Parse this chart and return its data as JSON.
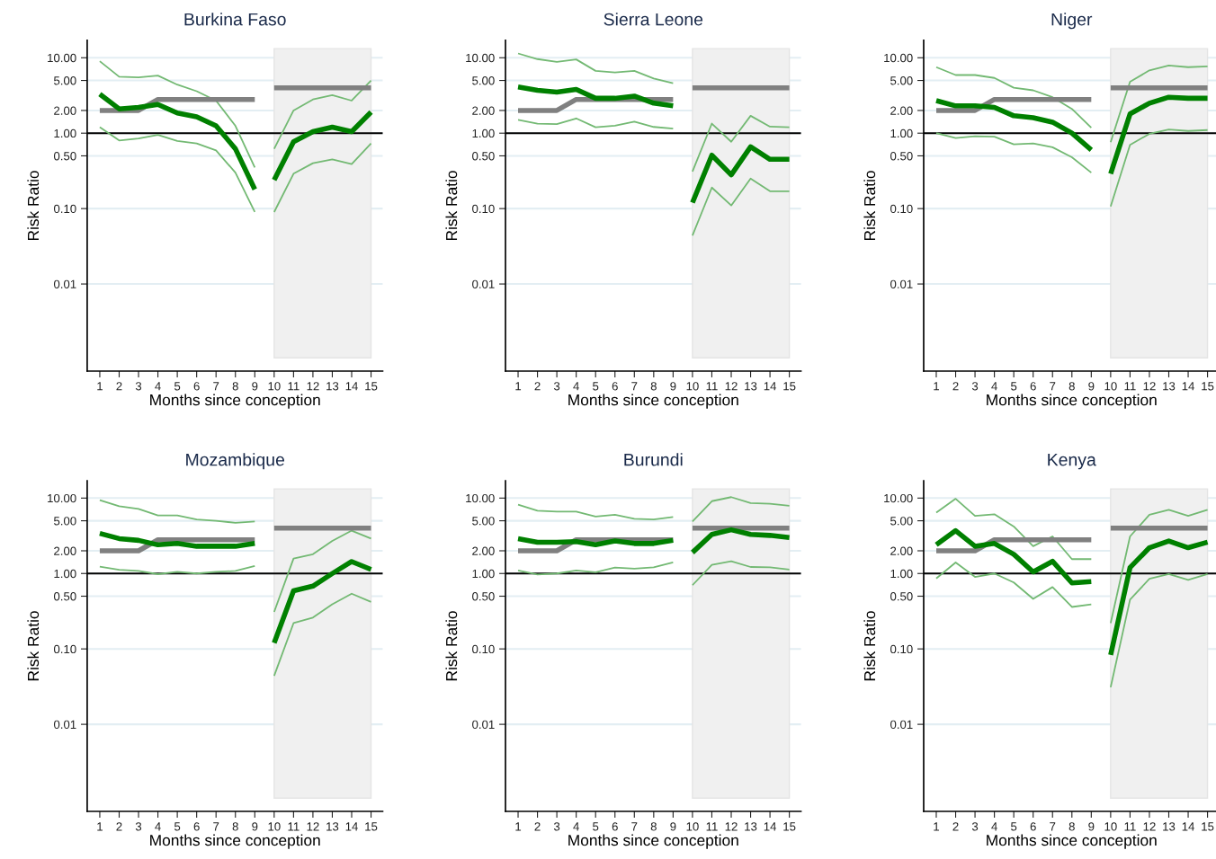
{
  "chart_data": [
    {
      "type": "line",
      "title": "Burkina Faso",
      "xlabel": "Months since conception",
      "ylabel": "Risk Ratio",
      "log": "y",
      "grid": "y",
      "xlim": [
        0.35,
        15.6
      ],
      "xticks": [
        1,
        2,
        3,
        4,
        5,
        6,
        7,
        8,
        9,
        10,
        11,
        12,
        13,
        14,
        15
      ],
      "ylim": [
        0.0007,
        17
      ],
      "yticks": [
        {
          "value": 0.01,
          "label": "0.01"
        },
        {
          "value": 0.1,
          "label": "0.10"
        },
        {
          "value": 0.5,
          "label": "0.50"
        },
        {
          "value": 1,
          "label": "1.00"
        },
        {
          "value": 2,
          "label": "2.00"
        },
        {
          "value": 5,
          "label": "5.00"
        },
        {
          "value": 10,
          "label": "10.00"
        }
      ],
      "ref_lines": [
        {
          "axis": "y",
          "value": 1,
          "color": "#000000"
        }
      ],
      "bands": [
        {
          "axis": "x",
          "from": 10,
          "to": 15,
          "color": "#f0f0f0"
        }
      ],
      "series": [
        {
          "color": "#808080",
          "x": [
            1,
            2,
            3,
            4,
            5,
            6,
            7,
            8,
            9
          ],
          "values": [
            2,
            2,
            2,
            2.8,
            2.8,
            2.8,
            2.8,
            2.8,
            2.8
          ]
        },
        {
          "color": "#808080",
          "x": [
            10,
            11,
            12,
            13,
            14,
            15
          ],
          "values": [
            4,
            4,
            4,
            4,
            4,
            4
          ]
        },
        {
          "color": "#73b973",
          "x": [
            1,
            2,
            3,
            4,
            5,
            6,
            7,
            8,
            9
          ],
          "values": [
            1.2,
            0.8,
            0.85,
            0.95,
            0.79,
            0.73,
            0.59,
            0.3,
            0.09
          ]
        },
        {
          "color": "#73b973",
          "x": [
            1,
            2,
            3,
            4,
            5,
            6,
            7,
            8,
            9
          ],
          "values": [
            9.0,
            5.6,
            5.5,
            5.8,
            4.4,
            3.6,
            2.7,
            1.25,
            0.35
          ]
        },
        {
          "color": "#73b973",
          "x": [
            10,
            11,
            12,
            13,
            14,
            15
          ],
          "values": [
            0.09,
            0.29,
            0.4,
            0.45,
            0.39,
            0.73
          ]
        },
        {
          "color": "#73b973",
          "x": [
            10,
            11,
            12,
            13,
            14,
            15
          ],
          "values": [
            0.62,
            2.0,
            2.8,
            3.2,
            2.7,
            5.0
          ]
        },
        {
          "color": "#008000",
          "x": [
            1,
            2,
            3,
            4,
            5,
            6,
            7,
            8,
            9
          ],
          "values": [
            3.3,
            2.1,
            2.2,
            2.4,
            1.85,
            1.65,
            1.25,
            0.62,
            0.18
          ]
        },
        {
          "color": "#008000",
          "x": [
            10,
            11,
            12,
            13,
            14,
            15
          ],
          "values": [
            0.24,
            0.77,
            1.05,
            1.2,
            1.05,
            1.9
          ]
        }
      ]
    },
    {
      "type": "line",
      "title": "Sierra Leone",
      "xlabel": "Months since conception",
      "ylabel": "Risk Ratio",
      "log": "y",
      "grid": "y",
      "xlim": [
        0.35,
        15.6
      ],
      "xticks": [
        1,
        2,
        3,
        4,
        5,
        6,
        7,
        8,
        9,
        10,
        11,
        12,
        13,
        14,
        15
      ],
      "ylim": [
        0.0007,
        17
      ],
      "yticks": [
        {
          "value": 0.01,
          "label": "0.01"
        },
        {
          "value": 0.1,
          "label": "0.10"
        },
        {
          "value": 0.5,
          "label": "0.50"
        },
        {
          "value": 1,
          "label": "1.00"
        },
        {
          "value": 2,
          "label": "2.00"
        },
        {
          "value": 5,
          "label": "5.00"
        },
        {
          "value": 10,
          "label": "10.00"
        }
      ],
      "ref_lines": [
        {
          "axis": "y",
          "value": 1,
          "color": "#000000"
        }
      ],
      "bands": [
        {
          "axis": "x",
          "from": 10,
          "to": 15,
          "color": "#f0f0f0"
        }
      ],
      "series": [
        {
          "color": "#808080",
          "x": [
            1,
            2,
            3,
            4,
            5,
            6,
            7,
            8,
            9
          ],
          "values": [
            2,
            2,
            2,
            2.8,
            2.8,
            2.8,
            2.8,
            2.8,
            2.8
          ]
        },
        {
          "color": "#808080",
          "x": [
            10,
            11,
            12,
            13,
            14,
            15
          ],
          "values": [
            4,
            4,
            4,
            4,
            4,
            4
          ]
        },
        {
          "color": "#73b973",
          "x": [
            1,
            2,
            3,
            4,
            5,
            6,
            7,
            8,
            9
          ],
          "values": [
            1.5,
            1.34,
            1.32,
            1.57,
            1.2,
            1.26,
            1.42,
            1.21,
            1.15
          ]
        },
        {
          "color": "#73b973",
          "x": [
            1,
            2,
            3,
            4,
            5,
            6,
            7,
            8,
            9
          ],
          "values": [
            11.4,
            9.6,
            8.8,
            9.5,
            6.7,
            6.4,
            6.7,
            5.3,
            4.6
          ]
        },
        {
          "color": "#73b973",
          "x": [
            10,
            11,
            12,
            13,
            14,
            15
          ],
          "values": [
            0.044,
            0.19,
            0.11,
            0.25,
            0.17,
            0.17
          ]
        },
        {
          "color": "#73b973",
          "x": [
            10,
            11,
            12,
            13,
            14,
            15
          ],
          "values": [
            0.31,
            1.34,
            0.77,
            1.7,
            1.22,
            1.2
          ]
        },
        {
          "color": "#008000",
          "x": [
            1,
            2,
            3,
            4,
            5,
            6,
            7,
            8,
            9
          ],
          "values": [
            4.1,
            3.7,
            3.5,
            3.8,
            2.9,
            2.9,
            3.1,
            2.5,
            2.3
          ]
        },
        {
          "color": "#008000",
          "x": [
            10,
            11,
            12,
            13,
            14,
            15
          ],
          "values": [
            0.12,
            0.51,
            0.28,
            0.66,
            0.45,
            0.45
          ]
        }
      ]
    },
    {
      "type": "line",
      "title": "Niger",
      "xlabel": "Months since conception",
      "ylabel": "Risk Ratio",
      "log": "y",
      "grid": "y",
      "xlim": [
        0.35,
        15.6
      ],
      "xticks": [
        1,
        2,
        3,
        4,
        5,
        6,
        7,
        8,
        9,
        10,
        11,
        12,
        13,
        14,
        15
      ],
      "ylim": [
        0.0007,
        17
      ],
      "yticks": [
        {
          "value": 0.01,
          "label": "0.01"
        },
        {
          "value": 0.1,
          "label": "0.10"
        },
        {
          "value": 0.5,
          "label": "0.50"
        },
        {
          "value": 1,
          "label": "1.00"
        },
        {
          "value": 2,
          "label": "2.00"
        },
        {
          "value": 5,
          "label": "5.00"
        },
        {
          "value": 10,
          "label": "10.00"
        }
      ],
      "ref_lines": [
        {
          "axis": "y",
          "value": 1,
          "color": "#000000"
        }
      ],
      "bands": [
        {
          "axis": "x",
          "from": 10,
          "to": 15,
          "color": "#f0f0f0"
        }
      ],
      "series": [
        {
          "color": "#808080",
          "x": [
            1,
            2,
            3,
            4,
            5,
            6,
            7,
            8,
            9
          ],
          "values": [
            2,
            2,
            2,
            2.8,
            2.8,
            2.8,
            2.8,
            2.8,
            2.8
          ]
        },
        {
          "color": "#808080",
          "x": [
            10,
            11,
            12,
            13,
            14,
            15
          ],
          "values": [
            4,
            4,
            4,
            4,
            4,
            4
          ]
        },
        {
          "color": "#73b973",
          "x": [
            1,
            2,
            3,
            4,
            5,
            6,
            7,
            8,
            9
          ],
          "values": [
            1.0,
            0.86,
            0.91,
            0.9,
            0.71,
            0.73,
            0.65,
            0.48,
            0.3
          ]
        },
        {
          "color": "#73b973",
          "x": [
            1,
            2,
            3,
            4,
            5,
            6,
            7,
            8,
            9
          ],
          "values": [
            7.5,
            5.9,
            5.9,
            5.4,
            4.0,
            3.7,
            3.0,
            2.1,
            1.18
          ]
        },
        {
          "color": "#73b973",
          "x": [
            10,
            11,
            12,
            13,
            14,
            15
          ],
          "values": [
            0.107,
            0.7,
            0.98,
            1.12,
            1.07,
            1.1
          ]
        },
        {
          "color": "#73b973",
          "x": [
            10,
            11,
            12,
            13,
            14,
            15
          ],
          "values": [
            0.76,
            4.8,
            6.8,
            7.9,
            7.5,
            7.7
          ]
        },
        {
          "color": "#008000",
          "x": [
            1,
            2,
            3,
            4,
            5,
            6,
            7,
            8,
            9
          ],
          "values": [
            2.7,
            2.3,
            2.3,
            2.2,
            1.7,
            1.6,
            1.4,
            1.0,
            0.6
          ]
        },
        {
          "color": "#008000",
          "x": [
            10,
            11,
            12,
            13,
            14,
            15
          ],
          "values": [
            0.29,
            1.8,
            2.5,
            3.0,
            2.9,
            2.9
          ]
        }
      ]
    },
    {
      "type": "line",
      "title": "Mozambique",
      "xlabel": "Months since conception",
      "ylabel": "Risk Ratio",
      "log": "y",
      "grid": "y",
      "xlim": [
        0.35,
        15.6
      ],
      "xticks": [
        1,
        2,
        3,
        4,
        5,
        6,
        7,
        8,
        9,
        10,
        11,
        12,
        13,
        14,
        15
      ],
      "ylim": [
        0.0007,
        17
      ],
      "yticks": [
        {
          "value": 0.01,
          "label": "0.01"
        },
        {
          "value": 0.1,
          "label": "0.10"
        },
        {
          "value": 0.5,
          "label": "0.50"
        },
        {
          "value": 1,
          "label": "1.00"
        },
        {
          "value": 2,
          "label": "2.00"
        },
        {
          "value": 5,
          "label": "5.00"
        },
        {
          "value": 10,
          "label": "10.00"
        }
      ],
      "ref_lines": [
        {
          "axis": "y",
          "value": 1,
          "color": "#000000"
        }
      ],
      "bands": [
        {
          "axis": "x",
          "from": 10,
          "to": 15,
          "color": "#f0f0f0"
        }
      ],
      "series": [
        {
          "color": "#808080",
          "x": [
            1,
            2,
            3,
            4,
            5,
            6,
            7,
            8,
            9
          ],
          "values": [
            2,
            2,
            2,
            2.8,
            2.8,
            2.8,
            2.8,
            2.8,
            2.8
          ]
        },
        {
          "color": "#808080",
          "x": [
            10,
            11,
            12,
            13,
            14,
            15
          ],
          "values": [
            4,
            4,
            4,
            4,
            4,
            4
          ]
        },
        {
          "color": "#73b973",
          "x": [
            1,
            2,
            3,
            4,
            5,
            6,
            7,
            8,
            9
          ],
          "values": [
            1.23,
            1.12,
            1.08,
            0.98,
            1.05,
            1.0,
            1.05,
            1.08,
            1.26
          ]
        },
        {
          "color": "#73b973",
          "x": [
            1,
            2,
            3,
            4,
            5,
            6,
            7,
            8,
            9
          ],
          "values": [
            9.4,
            7.8,
            7.2,
            5.9,
            5.9,
            5.2,
            5.0,
            4.7,
            4.9
          ]
        },
        {
          "color": "#73b973",
          "x": [
            10,
            11,
            12,
            13,
            14,
            15
          ],
          "values": [
            0.044,
            0.22,
            0.26,
            0.39,
            0.54,
            0.42
          ]
        },
        {
          "color": "#73b973",
          "x": [
            10,
            11,
            12,
            13,
            14,
            15
          ],
          "values": [
            0.31,
            1.58,
            1.8,
            2.7,
            3.7,
            2.9
          ]
        },
        {
          "color": "#008000",
          "x": [
            1,
            2,
            3,
            4,
            5,
            6,
            7,
            8,
            9
          ],
          "values": [
            3.4,
            2.9,
            2.75,
            2.4,
            2.5,
            2.3,
            2.3,
            2.3,
            2.5
          ]
        },
        {
          "color": "#008000",
          "x": [
            10,
            11,
            12,
            13,
            14,
            15
          ],
          "values": [
            0.12,
            0.59,
            0.68,
            1.0,
            1.44,
            1.13
          ]
        }
      ]
    },
    {
      "type": "line",
      "title": "Burundi",
      "xlabel": "Months since conception",
      "ylabel": "Risk Ratio",
      "log": "y",
      "grid": "y",
      "xlim": [
        0.35,
        15.6
      ],
      "xticks": [
        1,
        2,
        3,
        4,
        5,
        6,
        7,
        8,
        9,
        10,
        11,
        12,
        13,
        14,
        15
      ],
      "ylim": [
        0.0007,
        17
      ],
      "yticks": [
        {
          "value": 0.01,
          "label": "0.01"
        },
        {
          "value": 0.1,
          "label": "0.10"
        },
        {
          "value": 0.5,
          "label": "0.50"
        },
        {
          "value": 1,
          "label": "1.00"
        },
        {
          "value": 2,
          "label": "2.00"
        },
        {
          "value": 5,
          "label": "5.00"
        },
        {
          "value": 10,
          "label": "10.00"
        }
      ],
      "ref_lines": [
        {
          "axis": "y",
          "value": 1,
          "color": "#000000"
        }
      ],
      "bands": [
        {
          "axis": "x",
          "from": 10,
          "to": 15,
          "color": "#f0f0f0"
        }
      ],
      "series": [
        {
          "color": "#808080",
          "x": [
            1,
            2,
            3,
            4,
            5,
            6,
            7,
            8,
            9
          ],
          "values": [
            2,
            2,
            2,
            2.8,
            2.8,
            2.8,
            2.8,
            2.8,
            2.8
          ]
        },
        {
          "color": "#808080",
          "x": [
            10,
            11,
            12,
            13,
            14,
            15
          ],
          "values": [
            4,
            4,
            4,
            4,
            4,
            4
          ]
        },
        {
          "color": "#73b973",
          "x": [
            1,
            2,
            3,
            4,
            5,
            6,
            7,
            8,
            9
          ],
          "values": [
            1.1,
            0.97,
            1.0,
            1.1,
            1.04,
            1.2,
            1.16,
            1.21,
            1.4
          ]
        },
        {
          "color": "#73b973",
          "x": [
            1,
            2,
            3,
            4,
            5,
            6,
            7,
            8,
            9
          ],
          "values": [
            8.2,
            6.8,
            6.6,
            6.6,
            5.7,
            6.0,
            5.3,
            5.2,
            5.6
          ]
        },
        {
          "color": "#73b973",
          "x": [
            10,
            11,
            12,
            13,
            14,
            15
          ],
          "values": [
            0.7,
            1.3,
            1.45,
            1.22,
            1.21,
            1.13
          ]
        },
        {
          "color": "#73b973",
          "x": [
            10,
            11,
            12,
            13,
            14,
            15
          ],
          "values": [
            4.9,
            9.1,
            10.3,
            8.6,
            8.4,
            7.9
          ]
        },
        {
          "color": "#008000",
          "x": [
            1,
            2,
            3,
            4,
            5,
            6,
            7,
            8,
            9
          ],
          "values": [
            2.9,
            2.6,
            2.6,
            2.65,
            2.4,
            2.7,
            2.5,
            2.5,
            2.75
          ]
        },
        {
          "color": "#008000",
          "x": [
            10,
            11,
            12,
            13,
            14,
            15
          ],
          "values": [
            1.9,
            3.3,
            3.8,
            3.3,
            3.2,
            3.0
          ]
        }
      ]
    },
    {
      "type": "line",
      "title": "Kenya",
      "xlabel": "Months since conception",
      "ylabel": "Risk Ratio",
      "log": "y",
      "grid": "y",
      "xlim": [
        0.35,
        15.6
      ],
      "xticks": [
        1,
        2,
        3,
        4,
        5,
        6,
        7,
        8,
        9,
        10,
        11,
        12,
        13,
        14,
        15
      ],
      "ylim": [
        0.0007,
        17
      ],
      "yticks": [
        {
          "value": 0.01,
          "label": "0.01"
        },
        {
          "value": 0.1,
          "label": "0.10"
        },
        {
          "value": 0.5,
          "label": "0.50"
        },
        {
          "value": 1,
          "label": "1.00"
        },
        {
          "value": 2,
          "label": "2.00"
        },
        {
          "value": 5,
          "label": "5.00"
        },
        {
          "value": 10,
          "label": "10.00"
        }
      ],
      "ref_lines": [
        {
          "axis": "y",
          "value": 1,
          "color": "#000000"
        }
      ],
      "bands": [
        {
          "axis": "x",
          "from": 10,
          "to": 15,
          "color": "#f0f0f0"
        }
      ],
      "series": [
        {
          "color": "#808080",
          "x": [
            1,
            2,
            3,
            4,
            5,
            6,
            7,
            8,
            9
          ],
          "values": [
            2,
            2,
            2,
            2.8,
            2.8,
            2.8,
            2.8,
            2.8,
            2.8
          ]
        },
        {
          "color": "#808080",
          "x": [
            10,
            11,
            12,
            13,
            14,
            15
          ],
          "values": [
            4,
            4,
            4,
            4,
            4,
            4
          ]
        },
        {
          "color": "#73b973",
          "x": [
            1,
            2,
            3,
            4,
            5,
            6,
            7,
            8,
            9
          ],
          "values": [
            0.86,
            1.4,
            0.9,
            1.0,
            0.76,
            0.46,
            0.66,
            0.36,
            0.39
          ]
        },
        {
          "color": "#73b973",
          "x": [
            1,
            2,
            3,
            4,
            5,
            6,
            7,
            8,
            9
          ],
          "values": [
            6.4,
            9.8,
            5.8,
            6.1,
            4.2,
            2.3,
            3.1,
            1.55,
            1.55
          ]
        },
        {
          "color": "#73b973",
          "x": [
            10,
            11,
            12,
            13,
            14,
            15
          ],
          "values": [
            0.031,
            0.45,
            0.85,
            0.98,
            0.82,
            0.98
          ]
        },
        {
          "color": "#73b973",
          "x": [
            10,
            11,
            12,
            13,
            14,
            15
          ],
          "values": [
            0.22,
            3.1,
            6.0,
            7.0,
            5.8,
            7.0
          ]
        },
        {
          "color": "#008000",
          "x": [
            1,
            2,
            3,
            4,
            5,
            6,
            7,
            8,
            9
          ],
          "values": [
            2.4,
            3.7,
            2.3,
            2.5,
            1.8,
            1.05,
            1.45,
            0.75,
            0.78
          ]
        },
        {
          "color": "#008000",
          "x": [
            10,
            11,
            12,
            13,
            14,
            15
          ],
          "values": [
            0.083,
            1.2,
            2.2,
            2.7,
            2.2,
            2.6
          ]
        }
      ]
    }
  ]
}
